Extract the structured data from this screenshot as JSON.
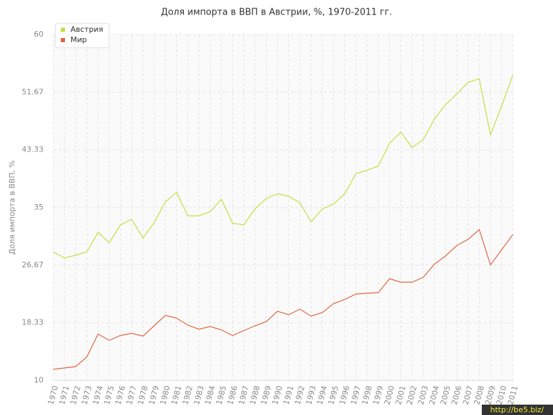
{
  "chart_data": {
    "type": "line",
    "title": "Доля импорта в ВВП в Австрии, %, 1970-2011 гг.",
    "y_label": "Доля импорта в ВВП, %",
    "categories": [
      "1970",
      "1971",
      "1972",
      "1973",
      "1974",
      "1975",
      "1976",
      "1977",
      "1978",
      "1979",
      "1980",
      "1981",
      "1982",
      "1983",
      "1984",
      "1985",
      "1986",
      "1987",
      "1988",
      "1989",
      "1990",
      "1991",
      "1992",
      "1993",
      "1994",
      "1995",
      "1996",
      "1997",
      "1998",
      "1999",
      "2000",
      "2001",
      "2002",
      "2003",
      "2004",
      "2005",
      "2006",
      "2007",
      "2008",
      "2009",
      "2010",
      "2011"
    ],
    "series": [
      {
        "name": "Австрия",
        "color": "#c8dc3c",
        "values": [
          28.6,
          27.7,
          28.1,
          28.6,
          31.4,
          29.9,
          32.5,
          33.3,
          30.6,
          32.8,
          35.8,
          37.2,
          33.8,
          33.8,
          34.4,
          36.2,
          32.7,
          32.5,
          34.8,
          36.3,
          37.0,
          36.6,
          35.7,
          32.9,
          34.8,
          35.5,
          37.0,
          39.9,
          40.4,
          41.0,
          44.3,
          45.9,
          43.7,
          44.8,
          47.8,
          49.9,
          51.4,
          53.1,
          53.6,
          45.5,
          49.7,
          54.2
        ]
      },
      {
        "name": "Мир",
        "color": "#e0643c",
        "values": [
          11.6,
          11.8,
          12.0,
          13.4,
          16.7,
          15.8,
          16.5,
          16.8,
          16.4,
          17.9,
          19.4,
          19.0,
          18.0,
          17.4,
          17.8,
          17.3,
          16.5,
          17.2,
          17.9,
          18.5,
          20.0,
          19.5,
          20.3,
          19.3,
          19.8,
          21.1,
          21.7,
          22.5,
          22.6,
          22.7,
          24.7,
          24.2,
          24.2,
          24.9,
          26.8,
          28.0,
          29.5,
          30.4,
          31.8,
          26.7,
          28.9,
          31.1
        ]
      }
    ],
    "ylim": [
      10,
      60
    ],
    "yticks": [
      10,
      18.33,
      26.67,
      35,
      43.33,
      51.67,
      60
    ],
    "grid": true,
    "watermark": "http://be5.biz/"
  }
}
